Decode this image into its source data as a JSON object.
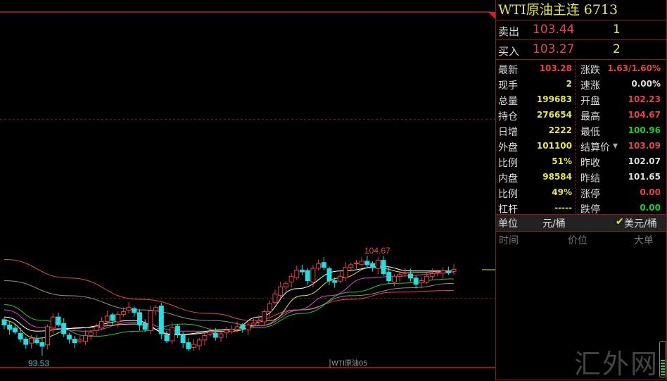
{
  "panel": {
    "title": "WTI原油主连  6713",
    "sell": {
      "label": "卖出",
      "price": "103.44",
      "qty": "1"
    },
    "buy": {
      "label": "买入",
      "price": "103.27",
      "qty": "2"
    },
    "rows": [
      {
        "l1": "最新",
        "v1": "103.28",
        "c1": "#e8404a",
        "l2": "涨跌",
        "v2": "1.63/1.60%",
        "c2": "#e8404a"
      },
      {
        "l1": "现手",
        "v1": "2",
        "c1": "#e6e64a",
        "l2": "速涨",
        "v2": "0.00%",
        "c2": "#ddd"
      },
      {
        "l1": "总量",
        "v1": "199683",
        "c1": "#e6e64a",
        "l2": "开盘",
        "v2": "102.23",
        "c2": "#e8404a"
      },
      {
        "l1": "持仓",
        "v1": "276654",
        "c1": "#e6e64a",
        "l2": "最高",
        "v2": "104.67",
        "c2": "#e8404a"
      },
      {
        "l1": "日增",
        "v1": "2222",
        "c1": "#e6e64a",
        "l2": "最低",
        "v2": "100.96",
        "c2": "#22cc22"
      },
      {
        "l1": "外盘",
        "v1": "101100",
        "c1": "#e6e64a",
        "l2": "结算价",
        "v2": "103.09",
        "c2": "#e8404a"
      },
      {
        "l1": "比例",
        "v1": "51%",
        "c1": "#e6e64a",
        "l2": "昨收",
        "v2": "102.07",
        "c2": "#ddd"
      },
      {
        "l1": "内盘",
        "v1": "98584",
        "c1": "#e6e64a",
        "l2": "昨结",
        "v2": "101.65",
        "c2": "#ddd"
      },
      {
        "l1": "比例",
        "v1": "49%",
        "c1": "#e6e64a",
        "l2": "涨停",
        "v2": "0.00",
        "c2": "#e8404a"
      },
      {
        "l1": "杠杆",
        "v1": "-----",
        "c1": "#e6e64a",
        "l2": "跌停",
        "v2": "0.00",
        "c2": "#22cc22"
      }
    ],
    "unit": {
      "label": "单位",
      "opt1": "元/桶",
      "opt2": "美元/桶",
      "checked": "opt2"
    },
    "ticks_header": {
      "time": "时间",
      "price": "价位",
      "big": "大单"
    },
    "watermark": "汇外网"
  },
  "chart_data": {
    "type": "candlestick",
    "series_label": "WTI原油05",
    "high_label": "104.67",
    "low_label": "93.53",
    "ylim": [
      91.5,
      121.5
    ],
    "ref_lines": [
      120.2,
      100.0
    ],
    "last_price": 103.28,
    "colors": {
      "up": "#e8404a",
      "down": "#22e0e0"
    },
    "closes": [
      97.0,
      96.5,
      96.2,
      95.4,
      94.8,
      95.5,
      95.0,
      94.6,
      96.8,
      97.9,
      97.0,
      96.0,
      95.4,
      95.0,
      95.3,
      95.8,
      96.2,
      96.8,
      97.4,
      98.0,
      97.5,
      98.2,
      98.5,
      99.0,
      98.4,
      97.0,
      96.5,
      98.6,
      99.0,
      96.0,
      95.2,
      96.7,
      96.0,
      95.0,
      94.3,
      94.8,
      95.3,
      95.8,
      96.2,
      95.6,
      96.0,
      96.4,
      96.5,
      96.8,
      96.6,
      97.0,
      97.2,
      97.5,
      98.5,
      99.4,
      100.5,
      101.3,
      101.7,
      102.5,
      103.2,
      103.0,
      102.0,
      103.4,
      103.9,
      103.5,
      102.0,
      101.8,
      102.5,
      103.5,
      103.8,
      104.0,
      104.2,
      103.8,
      103.5,
      104.3,
      102.8,
      102.0,
      102.5,
      102.7,
      102.9,
      102.3,
      101.6,
      102.0,
      102.5,
      102.8,
      103.0,
      103.1,
      102.9,
      103.28
    ],
    "first_open": 97.6,
    "low_index": 7,
    "low_value": 93.53,
    "high_index": 69,
    "high_value": 104.67,
    "moving_averages": [
      {
        "color": "#e84848",
        "points": [
          [
            0,
            104.4
          ],
          [
            12,
            102.3
          ],
          [
            25,
            99.9
          ],
          [
            38,
            98.3
          ],
          [
            46,
            97.5
          ],
          [
            54,
            98.7
          ],
          [
            64,
            99.9
          ],
          [
            72,
            100.7
          ],
          [
            83,
            100.9
          ]
        ]
      },
      {
        "color": "#909090",
        "points": [
          [
            0,
            102.0
          ],
          [
            12,
            100.3
          ],
          [
            25,
            98.7
          ],
          [
            38,
            97.5
          ],
          [
            47,
            96.9
          ],
          [
            55,
            98.7
          ],
          [
            64,
            100.3
          ],
          [
            75,
            101.2
          ],
          [
            83,
            101.7
          ]
        ]
      },
      {
        "color": "#22cc22",
        "points": [
          [
            0,
            99.3
          ],
          [
            7,
            97.5
          ],
          [
            16,
            95.7
          ],
          [
            25,
            96.3
          ],
          [
            33,
            97.1
          ],
          [
            41,
            96.3
          ],
          [
            47,
            96.7
          ],
          [
            55,
            98.3
          ],
          [
            64,
            100.7
          ],
          [
            72,
            101.7
          ],
          [
            83,
            102.2
          ]
        ]
      },
      {
        "color": "#e040e0",
        "points": [
          [
            0,
            98.7
          ],
          [
            7,
            96.7
          ],
          [
            15,
            96.3
          ],
          [
            24,
            97.3
          ],
          [
            33,
            96.3
          ],
          [
            42,
            96.3
          ],
          [
            47,
            96.9
          ],
          [
            54,
            98.7
          ],
          [
            60,
            100.3
          ],
          [
            67,
            102.3
          ],
          [
            72,
            102.5
          ],
          [
            83,
            102.9
          ]
        ]
      },
      {
        "color": "#e6e64a",
        "points": [
          [
            0,
            97.5
          ],
          [
            6,
            95.5
          ],
          [
            14,
            96.7
          ],
          [
            24,
            97.1
          ],
          [
            32,
            95.9
          ],
          [
            42,
            96.3
          ],
          [
            49,
            97.5
          ],
          [
            55,
            100.3
          ],
          [
            62,
            102.3
          ],
          [
            68,
            103.5
          ],
          [
            75,
            102.9
          ],
          [
            83,
            103.1
          ]
        ]
      },
      {
        "color": "#ffffff",
        "points": [
          [
            0,
            97.9
          ],
          [
            6,
            96.3
          ],
          [
            12,
            96.6
          ],
          [
            24,
            97.5
          ],
          [
            31,
            95.9
          ],
          [
            42,
            96.5
          ],
          [
            47,
            97.9
          ],
          [
            54,
            101.1
          ],
          [
            62,
            103.1
          ],
          [
            70,
            103.6
          ],
          [
            75,
            103.1
          ],
          [
            83,
            103.1
          ]
        ]
      }
    ]
  }
}
